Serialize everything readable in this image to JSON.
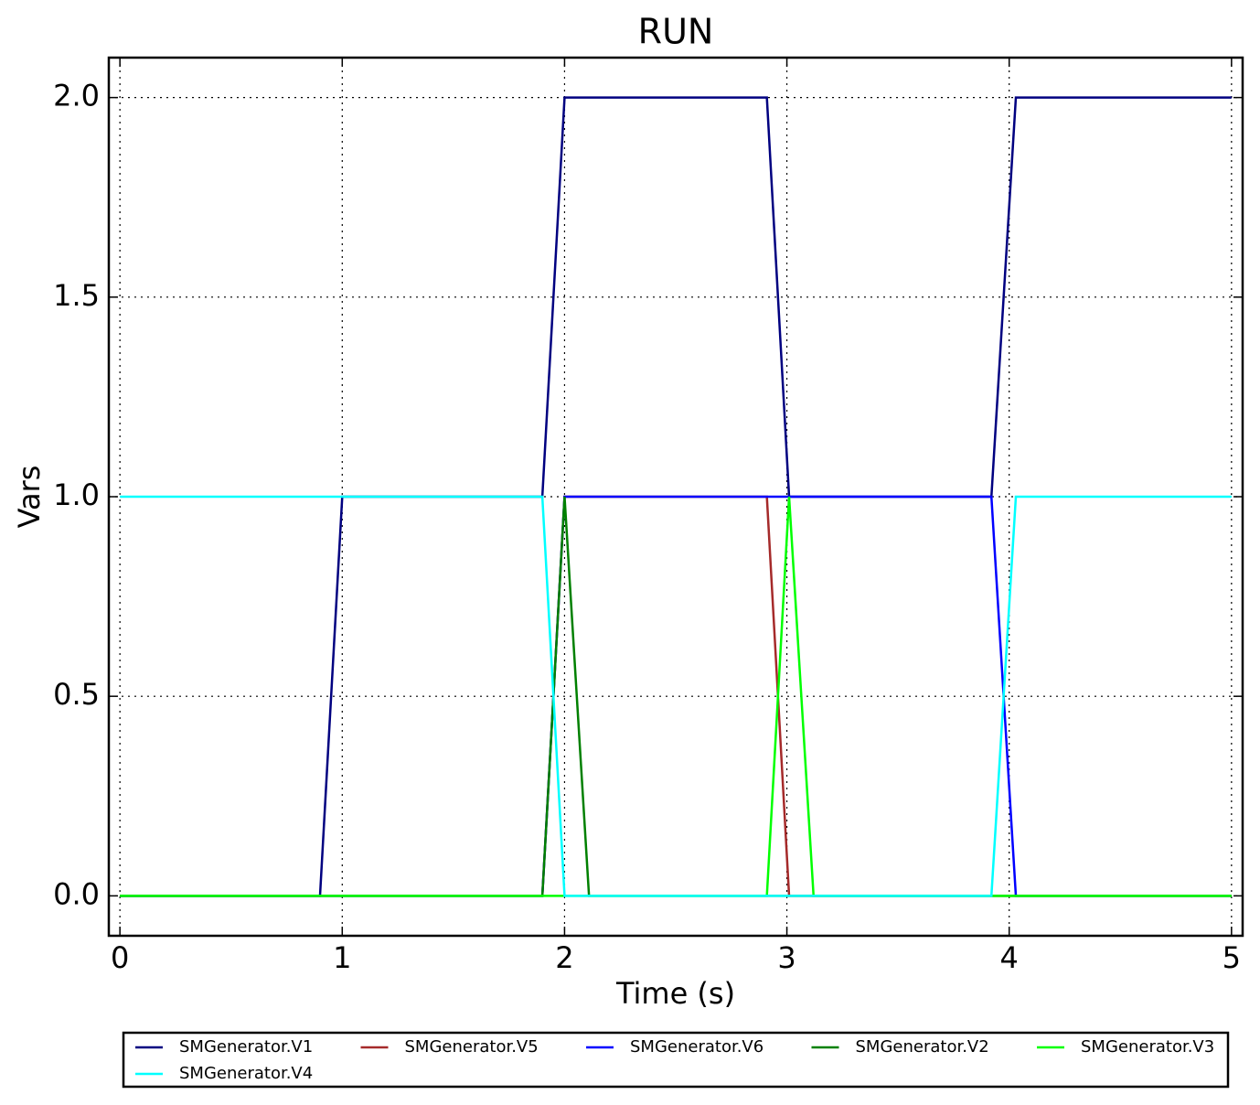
{
  "chart_data": {
    "type": "line",
    "title": "RUN",
    "xlabel": "Time (s)",
    "ylabel": "Vars",
    "xlim": [
      -0.05,
      5.05
    ],
    "ylim": [
      -0.1,
      2.1
    ],
    "xticks": [
      0,
      1,
      2,
      3,
      4,
      5
    ],
    "yticks": [
      {
        "value": 0,
        "label": "0.0"
      },
      {
        "value": 0.5,
        "label": "0.5"
      },
      {
        "value": 1,
        "label": "1.0"
      },
      {
        "value": 1.5,
        "label": "1.5"
      },
      {
        "value": 2,
        "label": "2.0"
      }
    ],
    "grid": true,
    "legend": "below",
    "series": [
      {
        "name": "SMGenerator.V1",
        "color": "#000080",
        "x": [
          0,
          0.9,
          1.0,
          1.9,
          2.0,
          2.91,
          3.01,
          3.92,
          4.03,
          5.0
        ],
        "values": [
          0,
          0,
          1,
          1,
          2,
          2,
          1,
          1,
          2,
          2
        ]
      },
      {
        "name": "SMGenerator.V5",
        "color": "#a52a2a",
        "x": [
          0,
          1.9,
          2.0,
          2.91,
          3.01,
          5.0
        ],
        "values": [
          0,
          0,
          1,
          1,
          0,
          0
        ]
      },
      {
        "name": "SMGenerator.V6",
        "color": "#0000ff",
        "x": [
          0,
          1.9,
          2.0,
          3.92,
          4.03,
          5.0
        ],
        "values": [
          0,
          0,
          1,
          1,
          0,
          0
        ]
      },
      {
        "name": "SMGenerator.V2",
        "color": "#008000",
        "x": [
          0,
          1.9,
          2.0,
          2.11,
          5.0
        ],
        "values": [
          0,
          0,
          1,
          0,
          0
        ]
      },
      {
        "name": "SMGenerator.V3",
        "color": "#00ff00",
        "x": [
          0,
          2.91,
          3.01,
          3.12,
          5.0
        ],
        "values": [
          0,
          0,
          1,
          0,
          0
        ]
      },
      {
        "name": "SMGenerator.V4",
        "color": "#00ffff",
        "x": [
          0,
          1.9,
          2.0,
          3.92,
          4.03,
          5.0
        ],
        "values": [
          1,
          1,
          0,
          0,
          1,
          1
        ]
      }
    ]
  }
}
